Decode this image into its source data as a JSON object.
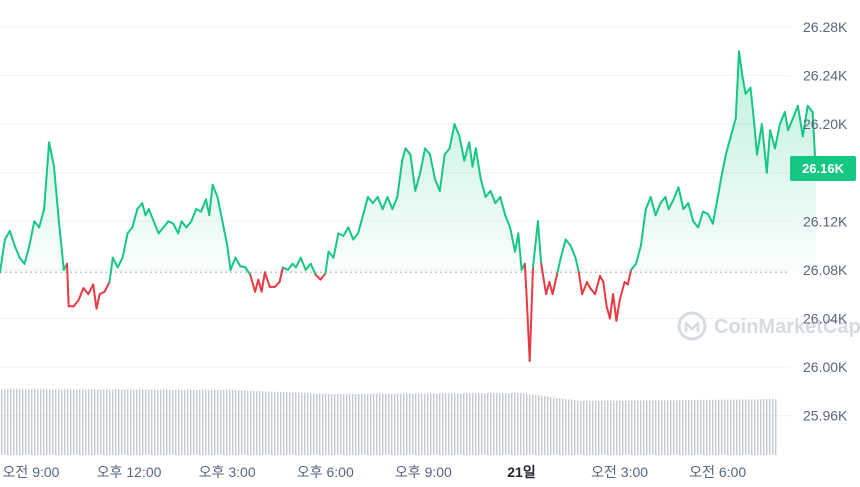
{
  "colors": {
    "up": "#16c784",
    "down": "#ea3943",
    "badge_bg": "#16c784",
    "volume": "#c4c9d1",
    "area_top": "#16c784"
  },
  "watermark": {
    "text": "CoinMarketCap",
    "icon": "coinmarketcap-logo-icon"
  },
  "badge": {
    "label": "26.16K"
  },
  "chart_data": {
    "type": "line",
    "title": "",
    "xlabel": "",
    "ylabel": "",
    "x_range_hours": [
      7.5,
      32.5
    ],
    "ylim": [
      25.93,
      26.3
    ],
    "yticks": [
      {
        "value": 26.28,
        "label": "26.28K"
      },
      {
        "value": 26.24,
        "label": "26.24K"
      },
      {
        "value": 26.2,
        "label": "26.20K"
      },
      {
        "value": 26.16,
        "label": "26.16K"
      },
      {
        "value": 26.12,
        "label": "26.12K"
      },
      {
        "value": 26.08,
        "label": "26.08K"
      },
      {
        "value": 26.04,
        "label": "26.04K"
      },
      {
        "value": 26.0,
        "label": "26.00K"
      },
      {
        "value": 25.96,
        "label": "25.96K"
      }
    ],
    "xticks": [
      {
        "hour": 9,
        "label": "오전 9:00",
        "bold": false
      },
      {
        "hour": 12,
        "label": "오후 12:00",
        "bold": false
      },
      {
        "hour": 15,
        "label": "오후 3:00",
        "bold": false
      },
      {
        "hour": 18,
        "label": "오후 6:00",
        "bold": false
      },
      {
        "hour": 21,
        "label": "오후 9:00",
        "bold": false
      },
      {
        "hour": 24,
        "label": "21일",
        "bold": true
      },
      {
        "hour": 27,
        "label": "오전 3:00",
        "bold": false
      },
      {
        "hour": 30,
        "label": "오전 6:00",
        "bold": false
      }
    ],
    "baseline": 26.078,
    "grid": true,
    "series": [
      {
        "name": "",
        "points": [
          [
            7.5,
            26.078
          ],
          [
            7.65,
            26.105
          ],
          [
            7.8,
            26.112
          ],
          [
            7.95,
            26.1
          ],
          [
            8.1,
            26.09
          ],
          [
            8.25,
            26.085
          ],
          [
            8.4,
            26.1
          ],
          [
            8.55,
            26.12
          ],
          [
            8.7,
            26.115
          ],
          [
            8.85,
            26.13
          ],
          [
            9.0,
            26.185
          ],
          [
            9.15,
            26.165
          ],
          [
            9.3,
            26.12
          ],
          [
            9.45,
            26.08
          ],
          [
            9.55,
            26.085
          ],
          [
            9.6,
            26.05
          ],
          [
            9.75,
            26.05
          ],
          [
            9.9,
            26.055
          ],
          [
            10.05,
            26.065
          ],
          [
            10.2,
            26.06
          ],
          [
            10.35,
            26.068
          ],
          [
            10.45,
            26.048
          ],
          [
            10.55,
            26.06
          ],
          [
            10.7,
            26.062
          ],
          [
            10.85,
            26.07
          ],
          [
            10.95,
            26.09
          ],
          [
            11.1,
            26.082
          ],
          [
            11.25,
            26.09
          ],
          [
            11.4,
            26.11
          ],
          [
            11.55,
            26.115
          ],
          [
            11.7,
            26.13
          ],
          [
            11.85,
            26.135
          ],
          [
            11.95,
            26.125
          ],
          [
            12.05,
            26.13
          ],
          [
            12.2,
            26.12
          ],
          [
            12.35,
            26.11
          ],
          [
            12.5,
            26.115
          ],
          [
            12.65,
            26.12
          ],
          [
            12.8,
            26.118
          ],
          [
            12.95,
            26.11
          ],
          [
            13.05,
            26.12
          ],
          [
            13.2,
            26.115
          ],
          [
            13.35,
            26.12
          ],
          [
            13.5,
            26.13
          ],
          [
            13.65,
            26.128
          ],
          [
            13.8,
            26.138
          ],
          [
            13.9,
            26.125
          ],
          [
            14.0,
            26.15
          ],
          [
            14.15,
            26.14
          ],
          [
            14.3,
            26.12
          ],
          [
            14.45,
            26.1
          ],
          [
            14.55,
            26.08
          ],
          [
            14.7,
            26.09
          ],
          [
            14.85,
            26.083
          ],
          [
            15.0,
            26.082
          ],
          [
            15.15,
            26.076
          ],
          [
            15.3,
            26.062
          ],
          [
            15.4,
            26.072
          ],
          [
            15.5,
            26.062
          ],
          [
            15.6,
            26.078
          ],
          [
            15.75,
            26.066
          ],
          [
            15.9,
            26.066
          ],
          [
            16.05,
            26.07
          ],
          [
            16.15,
            26.082
          ],
          [
            16.3,
            26.08
          ],
          [
            16.45,
            26.085
          ],
          [
            16.55,
            26.082
          ],
          [
            16.7,
            26.09
          ],
          [
            16.85,
            26.08
          ],
          [
            17.0,
            26.085
          ],
          [
            17.15,
            26.076
          ],
          [
            17.3,
            26.072
          ],
          [
            17.45,
            26.077
          ],
          [
            17.55,
            26.095
          ],
          [
            17.7,
            26.09
          ],
          [
            17.85,
            26.11
          ],
          [
            18.0,
            26.108
          ],
          [
            18.15,
            26.115
          ],
          [
            18.3,
            26.105
          ],
          [
            18.45,
            26.11
          ],
          [
            18.6,
            26.125
          ],
          [
            18.75,
            26.14
          ],
          [
            18.9,
            26.135
          ],
          [
            19.05,
            26.14
          ],
          [
            19.2,
            26.13
          ],
          [
            19.35,
            26.14
          ],
          [
            19.5,
            26.13
          ],
          [
            19.65,
            26.14
          ],
          [
            19.8,
            26.17
          ],
          [
            19.9,
            26.18
          ],
          [
            20.05,
            26.175
          ],
          [
            20.2,
            26.145
          ],
          [
            20.35,
            26.16
          ],
          [
            20.5,
            26.18
          ],
          [
            20.65,
            26.175
          ],
          [
            20.8,
            26.155
          ],
          [
            20.95,
            26.145
          ],
          [
            21.1,
            26.175
          ],
          [
            21.25,
            26.18
          ],
          [
            21.4,
            26.2
          ],
          [
            21.55,
            26.19
          ],
          [
            21.7,
            26.17
          ],
          [
            21.85,
            26.185
          ],
          [
            21.95,
            26.165
          ],
          [
            22.05,
            26.18
          ],
          [
            22.2,
            26.155
          ],
          [
            22.35,
            26.14
          ],
          [
            22.5,
            26.145
          ],
          [
            22.65,
            26.135
          ],
          [
            22.8,
            26.14
          ],
          [
            22.95,
            26.125
          ],
          [
            23.1,
            26.115
          ],
          [
            23.25,
            26.095
          ],
          [
            23.35,
            26.11
          ],
          [
            23.45,
            26.08
          ],
          [
            23.55,
            26.085
          ],
          [
            23.6,
            26.06
          ],
          [
            23.7,
            26.005
          ],
          [
            23.8,
            26.082
          ],
          [
            23.95,
            26.12
          ],
          [
            24.05,
            26.085
          ],
          [
            24.2,
            26.06
          ],
          [
            24.3,
            26.07
          ],
          [
            24.4,
            26.06
          ],
          [
            24.55,
            26.078
          ],
          [
            24.65,
            26.09
          ],
          [
            24.8,
            26.105
          ],
          [
            24.95,
            26.1
          ],
          [
            25.1,
            26.09
          ],
          [
            25.2,
            26.078
          ],
          [
            25.3,
            26.06
          ],
          [
            25.45,
            26.07
          ],
          [
            25.55,
            26.065
          ],
          [
            25.7,
            26.06
          ],
          [
            25.85,
            26.075
          ],
          [
            25.95,
            26.07
          ],
          [
            26.05,
            26.05
          ],
          [
            26.15,
            26.04
          ],
          [
            26.25,
            26.06
          ],
          [
            26.35,
            26.038
          ],
          [
            26.45,
            26.055
          ],
          [
            26.6,
            26.07
          ],
          [
            26.7,
            26.068
          ],
          [
            26.8,
            26.08
          ],
          [
            26.95,
            26.085
          ],
          [
            27.1,
            26.1
          ],
          [
            27.25,
            26.13
          ],
          [
            27.4,
            26.14
          ],
          [
            27.55,
            26.125
          ],
          [
            27.7,
            26.135
          ],
          [
            27.85,
            26.14
          ],
          [
            27.95,
            26.13
          ],
          [
            28.1,
            26.138
          ],
          [
            28.25,
            26.148
          ],
          [
            28.4,
            26.13
          ],
          [
            28.55,
            26.135
          ],
          [
            28.7,
            26.12
          ],
          [
            28.85,
            26.115
          ],
          [
            29.0,
            26.128
          ],
          [
            29.15,
            26.126
          ],
          [
            29.3,
            26.118
          ],
          [
            29.45,
            26.14
          ],
          [
            29.55,
            26.155
          ],
          [
            29.7,
            26.175
          ],
          [
            29.85,
            26.19
          ],
          [
            30.0,
            26.205
          ],
          [
            30.1,
            26.26
          ],
          [
            30.2,
            26.24
          ],
          [
            30.3,
            26.225
          ],
          [
            30.45,
            26.23
          ],
          [
            30.55,
            26.205
          ],
          [
            30.65,
            26.175
          ],
          [
            30.8,
            26.2
          ],
          [
            30.95,
            26.16
          ],
          [
            31.05,
            26.195
          ],
          [
            31.2,
            26.18
          ],
          [
            31.35,
            26.2
          ],
          [
            31.5,
            26.21
          ],
          [
            31.6,
            26.195
          ],
          [
            31.75,
            26.205
          ],
          [
            31.9,
            26.215
          ],
          [
            32.05,
            26.19
          ],
          [
            32.2,
            26.215
          ],
          [
            32.35,
            26.21
          ],
          [
            32.45,
            26.16
          ]
        ]
      }
    ],
    "volume_note": "volume bars shown as uniform light gray bars at bottom"
  }
}
